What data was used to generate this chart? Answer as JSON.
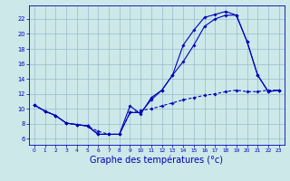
{
  "background_color": "#cce8e8",
  "grid_color": "#99bbcc",
  "line_color": "#0000bb",
  "xlabel": "Graphe des températures (°c)",
  "xlabel_fontsize": 7,
  "ytick_vals": [
    6,
    8,
    10,
    12,
    14,
    16,
    18,
    20,
    22
  ],
  "xtick_vals": [
    0,
    1,
    2,
    3,
    4,
    5,
    6,
    7,
    8,
    9,
    10,
    11,
    12,
    13,
    14,
    15,
    16,
    17,
    18,
    19,
    20,
    21,
    22,
    23
  ],
  "ylim": [
    5.2,
    23.8
  ],
  "xlim": [
    -0.5,
    23.5
  ],
  "hours": [
    0,
    1,
    2,
    3,
    4,
    5,
    6,
    7,
    8,
    9,
    10,
    11,
    12,
    13,
    14,
    15,
    16,
    17,
    18,
    19,
    20,
    21,
    22,
    23
  ],
  "series1_y": [
    10.5,
    9.7,
    9.1,
    8.1,
    7.9,
    7.7,
    6.6,
    6.6,
    6.6,
    10.4,
    9.3,
    11.5,
    12.5,
    14.5,
    18.5,
    20.5,
    22.2,
    22.6,
    23.0,
    22.5,
    19.0,
    14.5,
    12.3,
    12.5
  ],
  "series2_y": [
    10.5,
    9.7,
    9.1,
    8.1,
    7.9,
    7.7,
    6.6,
    6.6,
    6.6,
    9.5,
    9.5,
    11.2,
    12.5,
    14.5,
    16.3,
    18.5,
    21.0,
    22.0,
    22.5,
    22.5,
    19.0,
    14.5,
    12.3,
    12.5
  ],
  "series3_y": [
    10.5,
    9.7,
    9.1,
    8.1,
    7.9,
    7.7,
    7.0,
    6.6,
    6.6,
    9.5,
    9.8,
    10.0,
    10.4,
    10.8,
    11.2,
    11.5,
    11.8,
    12.0,
    12.3,
    12.5,
    12.3,
    12.3,
    12.5,
    12.5
  ]
}
